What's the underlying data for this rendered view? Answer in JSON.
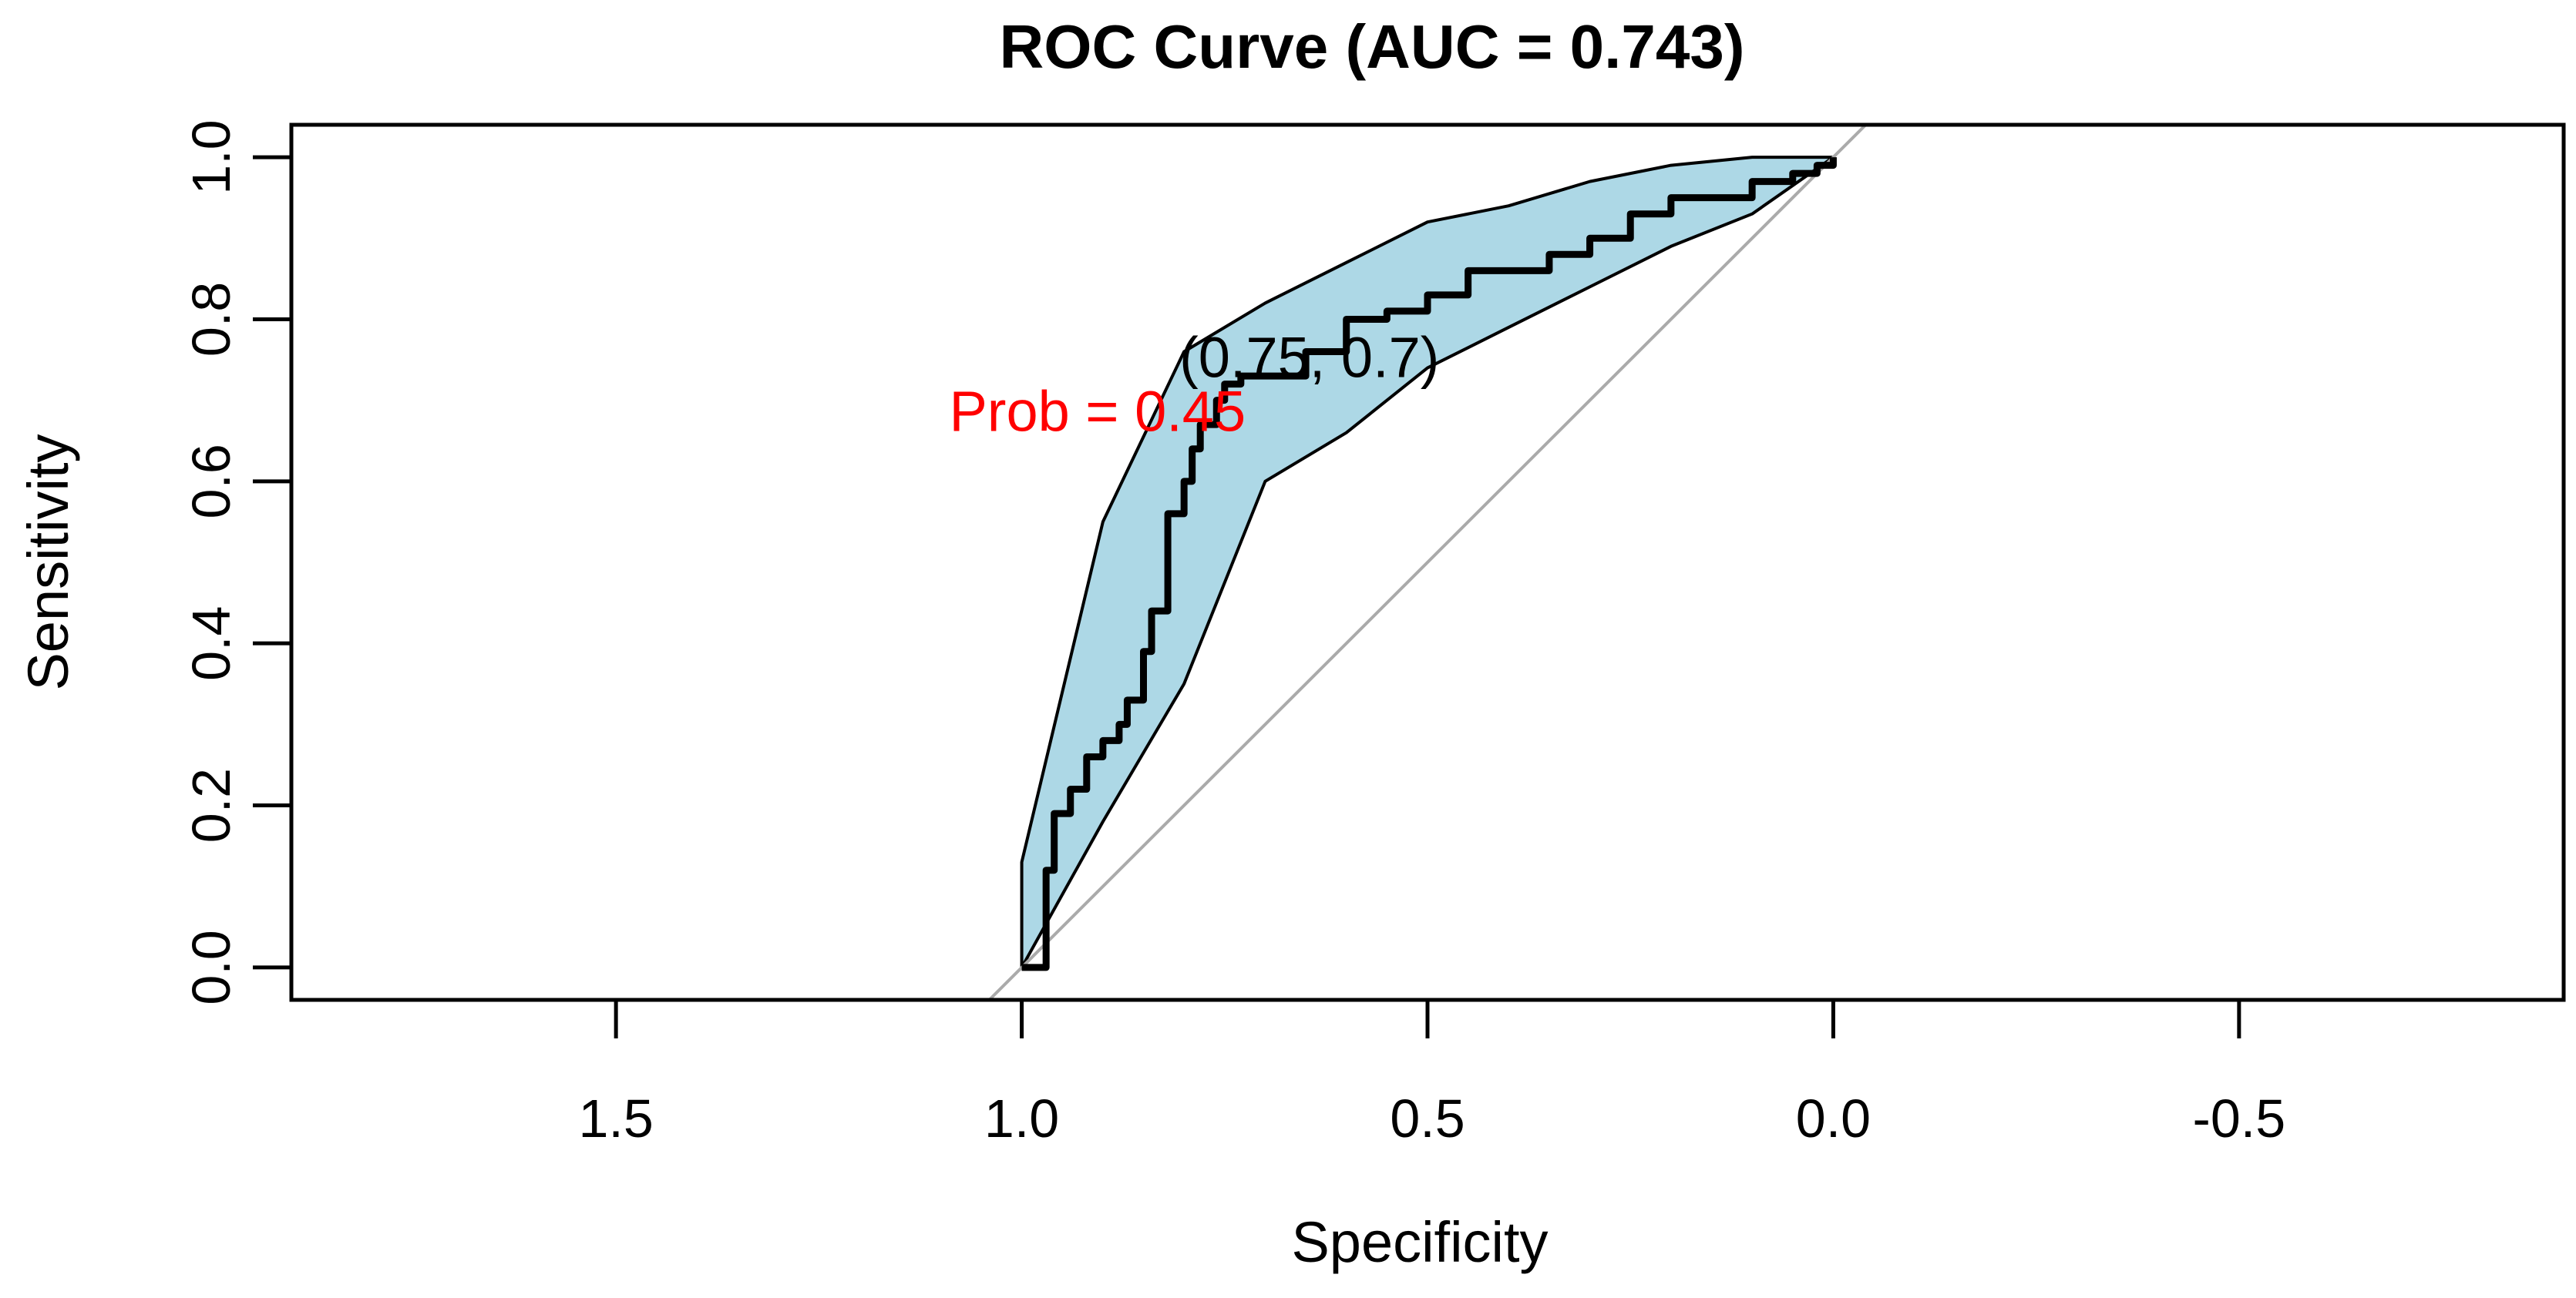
{
  "chart_data": {
    "type": "line",
    "title": "ROC Curve (AUC = 0.743)",
    "xlabel": "Specificity",
    "ylabel": "Sensitivity",
    "xlim": [
      1.9,
      -0.9
    ],
    "ylim": [
      -0.04,
      1.04
    ],
    "x_reversed": true,
    "x_ticks": [
      1.5,
      1.0,
      0.5,
      0.0,
      -0.5
    ],
    "x_tick_labels": [
      "1.5",
      "1.0",
      "0.5",
      "0.0",
      "-0.5"
    ],
    "y_ticks": [
      0.0,
      0.2,
      0.4,
      0.6,
      0.8,
      1.0
    ],
    "y_tick_labels": [
      "0.0",
      "0.2",
      "0.4",
      "0.6",
      "0.8",
      "1.0"
    ],
    "grid": false,
    "colors": {
      "ci_fill": "#add8e6",
      "curve": "#000000",
      "diagonal": "#aaaaaa",
      "threshold_text": "#ff0000"
    },
    "diagonal": {
      "x": [
        1.0,
        0.0
      ],
      "y": [
        0.0,
        1.0
      ]
    },
    "ci_band": {
      "upper": {
        "x": [
          1.0,
          1.0,
          0.9,
          0.8,
          0.7,
          0.6,
          0.5,
          0.4,
          0.3,
          0.2,
          0.1,
          0.0
        ],
        "y": [
          0.0,
          0.13,
          0.55,
          0.76,
          0.82,
          0.87,
          0.92,
          0.94,
          0.97,
          0.99,
          1.0,
          1.0
        ]
      },
      "lower": {
        "x": [
          1.0,
          0.9,
          0.8,
          0.7,
          0.6,
          0.5,
          0.4,
          0.3,
          0.2,
          0.1,
          0.0
        ],
        "y": [
          0.0,
          0.18,
          0.35,
          0.6,
          0.66,
          0.74,
          0.79,
          0.84,
          0.89,
          0.93,
          1.0
        ]
      }
    },
    "series": [
      {
        "name": "ROC",
        "x": [
          1.0,
          0.97,
          0.97,
          0.96,
          0.94,
          0.92,
          0.9,
          0.88,
          0.87,
          0.85,
          0.84,
          0.82,
          0.82,
          0.8,
          0.79,
          0.78,
          0.76,
          0.75,
          0.73,
          0.7,
          0.65,
          0.6,
          0.55,
          0.5,
          0.45,
          0.4,
          0.35,
          0.3,
          0.25,
          0.2,
          0.15,
          0.1,
          0.05,
          0.02,
          0.0
        ],
        "y": [
          0.0,
          0.01,
          0.12,
          0.19,
          0.22,
          0.26,
          0.28,
          0.3,
          0.33,
          0.39,
          0.44,
          0.49,
          0.56,
          0.6,
          0.64,
          0.67,
          0.7,
          0.72,
          0.73,
          0.73,
          0.76,
          0.8,
          0.81,
          0.83,
          0.86,
          0.86,
          0.88,
          0.9,
          0.93,
          0.95,
          0.95,
          0.97,
          0.98,
          0.99,
          1.0
        ]
      }
    ],
    "threshold_point": {
      "x": 0.75,
      "y": 0.7
    },
    "annotations": {
      "point_label": "(0.75, 0.7)",
      "threshold_label": "Prob = 0.45"
    }
  }
}
